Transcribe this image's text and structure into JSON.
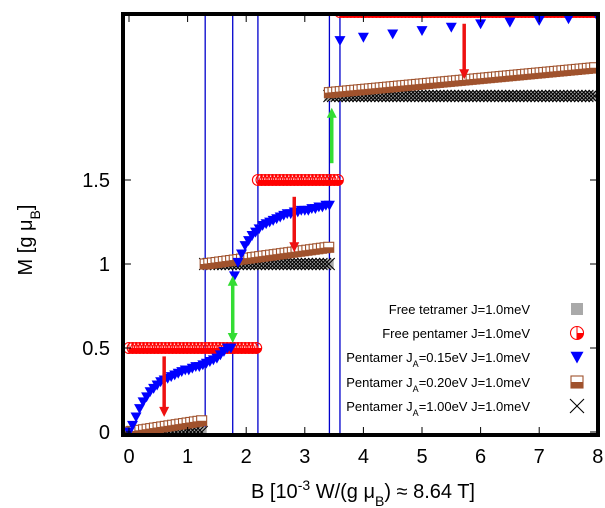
{
  "chart_data": {
    "type": "scatter",
    "xlabel_parts": [
      "B [10",
      "-3",
      " W/(g μ",
      "B",
      ") ≈ 8.64 T]"
    ],
    "ylabel_parts": [
      "M [g μ",
      "B",
      "]"
    ],
    "xlim": [
      -0.1,
      8
    ],
    "ylim": [
      0,
      2.5
    ],
    "xticks": [
      0,
      1,
      2,
      3,
      4,
      5,
      6,
      7,
      8
    ],
    "yticks": [
      0,
      0.5,
      1,
      1.5
    ],
    "ytick_labels": [
      "0",
      "0.5",
      "1",
      "1.5"
    ],
    "vertical_lines": [
      1.3,
      1.77,
      2.2,
      3.42,
      3.6
    ],
    "colors": {
      "frame": "#000000",
      "vlines": "#0000cc",
      "free_tetramer": "#a9a9a9",
      "free_pentamer": "#ff0000",
      "pentamer_015": "#0000ff",
      "pentamer_020": "#a0522d",
      "pentamer_100": "#000000",
      "arrow_red": "#ee1111",
      "arrow_green": "#33dd33"
    },
    "legend_position": "bottom-right",
    "series": [
      {
        "key": "free_tetramer",
        "name": "Free tetramer J=1.0meV",
        "marker": "square-filled",
        "segments": [
          [
            0,
            1.3,
            0
          ],
          [
            1.3,
            3.42,
            1
          ],
          [
            3.42,
            8,
            2
          ]
        ]
      },
      {
        "key": "free_pentamer",
        "name": "Free pentamer J=1.0meV",
        "marker": "circle-half",
        "segments": [
          [
            0,
            2.2,
            0.5
          ],
          [
            2.2,
            3.6,
            1.5
          ],
          [
            3.6,
            8,
            2.5
          ]
        ]
      },
      {
        "key": "pentamer_015",
        "name_parts": [
          "Pentamer J",
          "A",
          "=0.15eV J=1.0meV"
        ],
        "marker": "triangle-down",
        "points": [
          [
            0,
            0
          ],
          [
            0.06,
            0.04
          ],
          [
            0.12,
            0.09
          ],
          [
            0.18,
            0.14
          ],
          [
            0.24,
            0.18
          ],
          [
            0.3,
            0.21
          ],
          [
            0.36,
            0.24
          ],
          [
            0.42,
            0.26
          ],
          [
            0.48,
            0.28
          ],
          [
            0.54,
            0.3
          ],
          [
            0.6,
            0.31
          ],
          [
            0.66,
            0.32
          ],
          [
            0.72,
            0.33
          ],
          [
            0.78,
            0.34
          ],
          [
            0.84,
            0.35
          ],
          [
            0.9,
            0.36
          ],
          [
            0.96,
            0.37
          ],
          [
            1.02,
            0.37
          ],
          [
            1.08,
            0.38
          ],
          [
            1.14,
            0.39
          ],
          [
            1.2,
            0.39
          ],
          [
            1.26,
            0.4
          ],
          [
            1.32,
            0.41
          ],
          [
            1.38,
            0.42
          ],
          [
            1.44,
            0.43
          ],
          [
            1.5,
            0.44
          ],
          [
            1.56,
            0.46
          ],
          [
            1.62,
            0.48
          ],
          [
            1.68,
            0.5
          ],
          [
            1.74,
            0.5
          ],
          [
            1.8,
            0.93
          ],
          [
            1.86,
            1.01
          ],
          [
            1.92,
            1.06
          ],
          [
            1.98,
            1.11
          ],
          [
            2.04,
            1.14
          ],
          [
            2.1,
            1.17
          ],
          [
            2.16,
            1.19
          ],
          [
            2.22,
            1.21
          ],
          [
            2.28,
            1.23
          ],
          [
            2.34,
            1.24
          ],
          [
            2.4,
            1.25
          ],
          [
            2.46,
            1.26
          ],
          [
            2.52,
            1.27
          ],
          [
            2.58,
            1.28
          ],
          [
            2.64,
            1.29
          ],
          [
            2.7,
            1.3
          ],
          [
            2.76,
            1.3
          ],
          [
            2.82,
            1.31
          ],
          [
            2.88,
            1.31
          ],
          [
            2.94,
            1.32
          ],
          [
            3.0,
            1.32
          ],
          [
            3.06,
            1.32
          ],
          [
            3.12,
            1.33
          ],
          [
            3.18,
            1.33
          ],
          [
            3.24,
            1.34
          ],
          [
            3.3,
            1.34
          ],
          [
            3.36,
            1.35
          ],
          [
            3.42,
            1.35
          ],
          [
            3.6,
            2.33
          ],
          [
            4.0,
            2.35
          ],
          [
            4.5,
            2.37
          ],
          [
            5.0,
            2.39
          ],
          [
            5.5,
            2.41
          ],
          [
            6.0,
            2.43
          ],
          [
            6.5,
            2.44
          ],
          [
            7.0,
            2.45
          ],
          [
            7.5,
            2.46
          ],
          [
            8.0,
            2.47
          ]
        ]
      },
      {
        "key": "pentamer_020",
        "name_parts": [
          "Pentamer J",
          "A",
          "=0.20eV J=1.0meV"
        ],
        "marker": "square-half",
        "segments": [
          [
            0,
            1.3,
            0,
            0.07
          ],
          [
            1.3,
            3.42,
            1,
            1.1
          ],
          [
            3.42,
            8,
            2.02,
            2.17
          ]
        ]
      },
      {
        "key": "pentamer_100",
        "name_parts": [
          "Pentamer J",
          "A",
          "=1.00eV J=1.0meV"
        ],
        "marker": "cross",
        "segments": [
          [
            0,
            1.3,
            0
          ],
          [
            1.3,
            3.42,
            1
          ],
          [
            3.42,
            8,
            2
          ]
        ]
      }
    ],
    "arrows": [
      {
        "x": 0.6,
        "from": 0.45,
        "to": 0.09,
        "color_key": "arrow_red",
        "heads": [
          "end"
        ]
      },
      {
        "x": 2.82,
        "from": 1.4,
        "to": 1.07,
        "color_key": "arrow_red",
        "heads": [
          "end"
        ]
      },
      {
        "x": 5.72,
        "from": 2.43,
        "to": 2.1,
        "color_key": "arrow_red",
        "heads": [
          "end"
        ]
      },
      {
        "x": 1.77,
        "from": 0.93,
        "to": 0.53,
        "color_key": "arrow_green",
        "heads": [
          "start",
          "end"
        ]
      },
      {
        "x": 3.46,
        "from": 1.6,
        "to": 1.93,
        "color_key": "arrow_green",
        "heads": [
          "end"
        ]
      }
    ]
  }
}
